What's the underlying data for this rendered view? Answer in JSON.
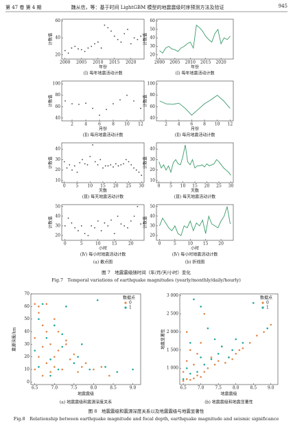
{
  "header": {
    "left": "第 47 卷 第 4 期",
    "center": "魏从信，等：基于时间 LightGBM 模型的地震震级时序预测方法及验证",
    "right": "945"
  },
  "figure7": {
    "panel_labels": [
      "(a) 散点图",
      "(b) 折线图"
    ],
    "caption_cn": "图 7　地震震级随时间（年/月/天/小时）变化",
    "caption_en": "Fig.7　Temporal variations of earthquake magnitudes (yearly/monthly/daily/hourly)"
  },
  "figure8": {
    "caption_cn": "图 8　地震震级和震源深度关系以及地震震级与地震显著性",
    "caption_en": "Fig.8　Relationship between earthquake magnitude and focal depth, earthquake magnitude and seismic significance"
  },
  "chart_data": [
    {
      "type": "scatter",
      "xlabel": "年份",
      "ylabel": "计数值",
      "caption": "(Ⅰ) 每年地震活动计数",
      "color": "#444444",
      "x": [
        2000,
        2001,
        2002,
        2003,
        2004,
        2005,
        2006,
        2007,
        2008,
        2009,
        2010,
        2011,
        2012,
        2013,
        2014,
        2015,
        2016,
        2017,
        2018,
        2019,
        2020,
        2021,
        2022,
        2023
      ],
      "values": [
        25,
        22,
        28,
        30,
        27,
        26,
        24,
        28,
        30,
        33,
        35,
        28,
        55,
        52,
        48,
        42,
        38,
        35,
        45,
        50,
        33,
        40,
        38,
        42
      ],
      "xlim": [
        1999,
        2024
      ],
      "xticks": [
        2000,
        2005,
        2010,
        2015,
        2020
      ],
      "ylim": [
        15,
        62
      ],
      "yticks": [
        20,
        40,
        60
      ]
    },
    {
      "type": "line",
      "xlabel": "年份",
      "ylabel": "计数值",
      "caption": "(Ⅰ) 每年地震活动计数",
      "color": "#3a9a6a",
      "x": [
        2000,
        2001,
        2002,
        2003,
        2004,
        2005,
        2006,
        2007,
        2008,
        2009,
        2010,
        2011,
        2012,
        2013,
        2014,
        2015,
        2016,
        2017,
        2018,
        2019,
        2020,
        2021,
        2022,
        2023
      ],
      "values": [
        25,
        22,
        28,
        30,
        27,
        26,
        24,
        28,
        30,
        33,
        35,
        28,
        55,
        52,
        48,
        42,
        38,
        35,
        45,
        50,
        33,
        40,
        38,
        42
      ],
      "xlim": [
        1999,
        2024
      ],
      "xticks": [
        2000,
        2005,
        2010,
        2015,
        2020
      ],
      "ylim": [
        15,
        62
      ],
      "yticks": [
        20,
        30,
        40,
        50,
        60
      ]
    },
    {
      "type": "scatter",
      "xlabel": "月份",
      "ylabel": "计数值",
      "caption": "(Ⅱ) 每月地震活动计数",
      "color": "#444444",
      "x": [
        1,
        2,
        3,
        4,
        5,
        6,
        7,
        8,
        9,
        10,
        11,
        12
      ],
      "values": [
        70,
        65,
        64,
        66,
        57,
        45,
        55,
        65,
        72,
        80,
        70,
        57
      ],
      "xlim": [
        0.5,
        12.5
      ],
      "xticks": [
        2,
        4,
        6,
        8,
        10,
        12
      ],
      "ylim": [
        35,
        105
      ],
      "yticks": [
        40,
        60,
        80,
        100
      ]
    },
    {
      "type": "line",
      "xlabel": "月份",
      "ylabel": "计数值",
      "caption": "(Ⅱ) 每月地震活动计数",
      "color": "#3a9a6a",
      "x": [
        1,
        2,
        3,
        4,
        5,
        6,
        7,
        8,
        9,
        10,
        11,
        12
      ],
      "values": [
        70,
        65,
        64,
        66,
        57,
        45,
        55,
        65,
        72,
        80,
        70,
        57
      ],
      "xlim": [
        0.5,
        12.5
      ],
      "xticks": [
        2,
        4,
        6,
        8,
        10,
        12
      ],
      "ylim": [
        35,
        105
      ],
      "yticks": [
        40,
        60,
        80,
        100
      ]
    },
    {
      "type": "scatter",
      "xlabel": "天数",
      "ylabel": "计数值",
      "caption": "(Ⅲ) 每天地震活动计数",
      "color": "#444444",
      "x": [
        0,
        1,
        2,
        3,
        4,
        5,
        6,
        7,
        8,
        9,
        10,
        11,
        12,
        13,
        14,
        15,
        16,
        17,
        18,
        19,
        20,
        21,
        22,
        23,
        24,
        25,
        26,
        27,
        28,
        29,
        30
      ],
      "values": [
        28,
        22,
        25,
        20,
        24,
        18,
        27,
        30,
        26,
        25,
        33,
        44,
        28,
        25,
        30,
        22,
        24,
        24,
        25,
        23,
        26,
        24,
        25,
        26,
        30,
        28,
        25,
        22,
        20,
        18,
        15
      ],
      "xlim": [
        -1,
        31
      ],
      "xticks": [
        0,
        5,
        10,
        15,
        20,
        25,
        30
      ],
      "ylim": [
        8,
        46
      ],
      "yticks": [
        10,
        20,
        30,
        40
      ]
    },
    {
      "type": "line",
      "xlabel": "天数",
      "ylabel": "计数值",
      "caption": "(Ⅲ) 每天地震活动计数",
      "color": "#3a9a6a",
      "x": [
        0,
        1,
        2,
        3,
        4,
        5,
        6,
        7,
        8,
        9,
        10,
        11,
        12,
        13,
        14,
        15,
        16,
        17,
        18,
        19,
        20,
        21,
        22,
        23,
        24,
        25,
        26,
        27,
        28,
        29,
        30
      ],
      "values": [
        28,
        22,
        25,
        20,
        24,
        18,
        27,
        30,
        26,
        25,
        33,
        44,
        28,
        25,
        30,
        22,
        24,
        24,
        25,
        23,
        26,
        24,
        25,
        26,
        30,
        28,
        25,
        22,
        20,
        18,
        15
      ],
      "xlim": [
        -1,
        31
      ],
      "xticks": [
        0,
        5,
        10,
        15,
        20,
        25,
        30
      ],
      "ylim": [
        8,
        46
      ],
      "yticks": [
        10,
        20,
        30,
        40
      ]
    },
    {
      "type": "scatter",
      "xlabel": "小时",
      "ylabel": "计数值",
      "caption": "(Ⅳ) 每小时地震活动计数",
      "color": "#444444",
      "x": [
        0,
        1,
        2,
        3,
        4,
        5,
        6,
        7,
        8,
        9,
        10,
        11,
        12,
        13,
        14,
        15,
        16,
        17,
        18,
        19,
        20,
        21,
        22,
        23
      ],
      "values": [
        30,
        38,
        33,
        28,
        25,
        30,
        22,
        20,
        30,
        28,
        35,
        25,
        33,
        30,
        36,
        22,
        40,
        32,
        30,
        28,
        35,
        40,
        50,
        32
      ],
      "xlim": [
        -1,
        24
      ],
      "xticks": [
        0,
        5,
        10,
        15,
        20
      ],
      "ylim": [
        15,
        52
      ],
      "yticks": [
        20,
        30,
        40,
        50
      ]
    },
    {
      "type": "line",
      "xlabel": "小时",
      "ylabel": "计数值",
      "caption": "(Ⅳ) 每小时地震活动计数",
      "color": "#3a9a6a",
      "x": [
        0,
        1,
        2,
        3,
        4,
        5,
        6,
        7,
        8,
        9,
        10,
        11,
        12,
        13,
        14,
        15,
        16,
        17,
        18,
        19,
        20,
        21,
        22,
        23
      ],
      "values": [
        30,
        38,
        33,
        28,
        25,
        30,
        22,
        20,
        30,
        28,
        35,
        25,
        33,
        30,
        36,
        22,
        40,
        32,
        30,
        28,
        35,
        40,
        50,
        32
      ],
      "xlim": [
        -1,
        24
      ],
      "xticks": [
        0,
        5,
        10,
        15,
        20
      ],
      "ylim": [
        15,
        52
      ],
      "yticks": [
        20,
        30,
        40,
        50
      ]
    },
    {
      "type": "scatter",
      "xlabel": "地震震级",
      "ylabel": "震源深度/km",
      "caption": "(a) 地震震级和震源深度关系",
      "legend_title": "数据点",
      "series": [
        {
          "name": "0",
          "color": "#e0884a",
          "x": [
            6.5,
            6.5,
            6.6,
            6.6,
            6.7,
            6.7,
            6.8,
            6.8,
            6.9,
            6.9,
            7.0,
            7.0,
            7.1,
            7.1,
            7.2,
            7.3,
            7.4,
            7.5,
            7.6,
            7.7,
            7.8,
            8.0,
            8.2,
            8.4,
            6.5,
            6.6,
            6.7,
            6.8,
            7.0,
            7.3
          ],
          "values": [
            10,
            35,
            20,
            60,
            5,
            45,
            15,
            62,
            30,
            8,
            12,
            50,
            25,
            40,
            10,
            33,
            18,
            22,
            8,
            12,
            15,
            10,
            12,
            5,
            62,
            55,
            28,
            40,
            20,
            30
          ]
        },
        {
          "name": "1",
          "color": "#1fa99a",
          "x": [
            6.5,
            6.6,
            6.7,
            6.8,
            6.9,
            7.0,
            7.1,
            7.2,
            7.3,
            7.5,
            7.7,
            7.9,
            8.1,
            8.3,
            8.6,
            6.6,
            6.9,
            7.2,
            7.6,
            9.0
          ],
          "values": [
            25,
            12,
            62,
            35,
            18,
            45,
            10,
            28,
            60,
            15,
            30,
            10,
            65,
            12,
            8,
            50,
            5,
            38,
            20,
            10
          ]
        }
      ],
      "xlim": [
        6.4,
        9.2
      ],
      "xticks": [
        6.5,
        {
          "value": 7,
          "label": "7.0"
        },
        7.5,
        {
          "value": 8,
          "label": "8.0"
        },
        8.5,
        {
          "value": 9,
          "label": "9.0"
        }
      ],
      "ylim": [
        -2,
        70
      ],
      "yticks": [
        0,
        10,
        20,
        30,
        40,
        50,
        60,
        70
      ]
    },
    {
      "type": "scatter",
      "xlabel": "地震震级",
      "ylabel": "地震显著性",
      "caption": "(b) 地震震级和地震显著性",
      "legend_title": "数据点",
      "series": [
        {
          "name": "0",
          "color": "#e0884a",
          "x": [
            6.5,
            6.5,
            6.6,
            6.6,
            6.7,
            6.7,
            6.8,
            6.8,
            6.9,
            6.9,
            7.0,
            7.0,
            7.1,
            7.2,
            7.3,
            7.4,
            7.5,
            7.6,
            7.7,
            7.8,
            7.9,
            8.0,
            8.1,
            8.2,
            8.4,
            8.6,
            8.8,
            9.0,
            6.6,
            7.1
          ],
          "values": [
            650,
            900,
            700,
            1200,
            680,
            1500,
            720,
            1100,
            800,
            1400,
            760,
            1700,
            900,
            1000,
            1300,
            1100,
            1200,
            1600,
            1150,
            1300,
            1250,
            1400,
            1500,
            1550,
            1700,
            1900,
            2000,
            2200,
            2000,
            2500
          ]
        },
        {
          "name": "1",
          "color": "#1fa99a",
          "x": [
            6.5,
            6.6,
            6.7,
            6.8,
            6.9,
            7.0,
            7.1,
            7.2,
            7.3,
            7.5,
            7.6,
            7.8,
            8.0,
            8.2,
            8.5,
            8.9,
            6.7,
            7.0,
            7.4,
            7.9
          ],
          "values": [
            700,
            1000,
            850,
            2900,
            900,
            1300,
            1100,
            2100,
            1250,
            1400,
            1600,
            1300,
            1800,
            1700,
            2800,
            2100,
            1700,
            2700,
            1800,
            1500
          ]
        }
      ],
      "xlim": [
        6.4,
        9.2
      ],
      "xticks": [
        6.5,
        {
          "value": 7,
          "label": "7.0"
        },
        7.5,
        {
          "value": 8,
          "label": "8.0"
        },
        8.5,
        {
          "value": 9,
          "label": "9.0"
        }
      ],
      "ylim": [
        550,
        3050
      ],
      "yticks": [
        {
          "value": 1000,
          "label": "1 000"
        },
        {
          "value": 1500,
          "label": "1 500"
        },
        {
          "value": 2000,
          "label": "2 000"
        },
        {
          "value": 2500,
          "label": "2 500"
        },
        {
          "value": 3000,
          "label": "3 000"
        }
      ]
    }
  ]
}
